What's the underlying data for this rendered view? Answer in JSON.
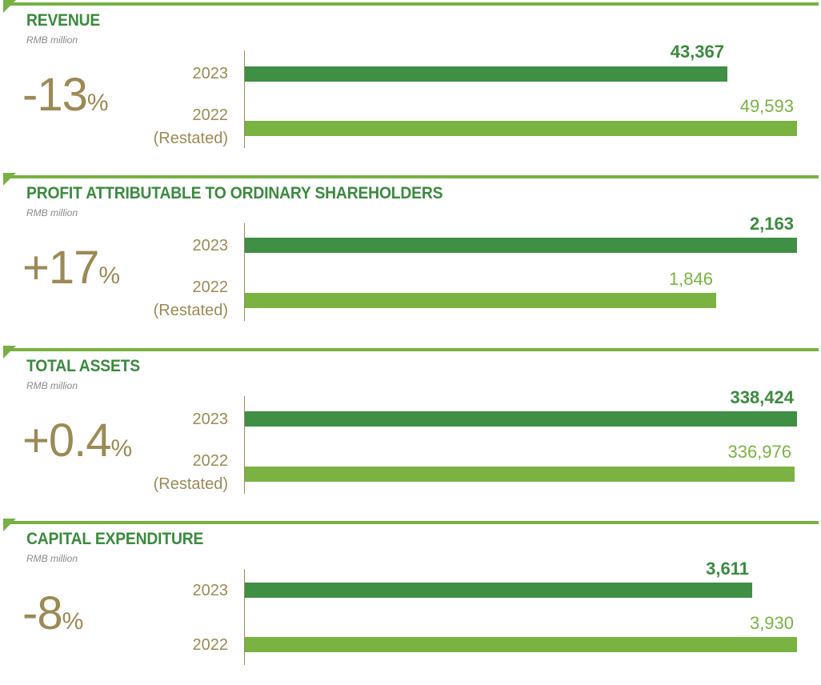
{
  "chart_data": [
    {
      "type": "bar",
      "title": "REVENUE",
      "unit": "RMB million",
      "change": "-13",
      "change_unit": "%",
      "categories": [
        "2023",
        "2022"
      ],
      "category_notes": [
        "",
        "(Restated)"
      ],
      "values": [
        43367,
        49593
      ],
      "value_labels": [
        "43,367",
        "49,593"
      ],
      "xlim": [
        0,
        49593
      ]
    },
    {
      "type": "bar",
      "title": "PROFIT ATTRIBUTABLE TO ORDINARY SHAREHOLDERS",
      "unit": "RMB million",
      "change": "+17",
      "change_unit": "%",
      "categories": [
        "2023",
        "2022"
      ],
      "category_notes": [
        "",
        "(Restated)"
      ],
      "values": [
        2163,
        1846
      ],
      "value_labels": [
        "2,163",
        "1,846"
      ],
      "xlim": [
        0,
        2163
      ]
    },
    {
      "type": "bar",
      "title": "TOTAL ASSETS",
      "unit": "RMB million",
      "change": "+0.4",
      "change_unit": "%",
      "categories": [
        "2023",
        "2022"
      ],
      "category_notes": [
        "",
        "(Restated)"
      ],
      "values": [
        338424,
        336976
      ],
      "value_labels": [
        "338,424",
        "336,976"
      ],
      "xlim": [
        0,
        338424
      ]
    },
    {
      "type": "bar",
      "title": "CAPITAL EXPENDITURE",
      "unit": "RMB million",
      "change": "-8",
      "change_unit": "%",
      "categories": [
        "2023",
        "2022"
      ],
      "category_notes": [
        "",
        ""
      ],
      "values": [
        3611,
        3930
      ],
      "value_labels": [
        "3,611",
        "3,930"
      ],
      "xlim": [
        0,
        3930
      ]
    }
  ],
  "colors": {
    "accent_line": "#78b043",
    "title": "#3b8a3f",
    "bar_2023": "#3f8f45",
    "bar_2022": "#7ab342",
    "change": "#9c8a55",
    "axis": "#9c8a55"
  }
}
